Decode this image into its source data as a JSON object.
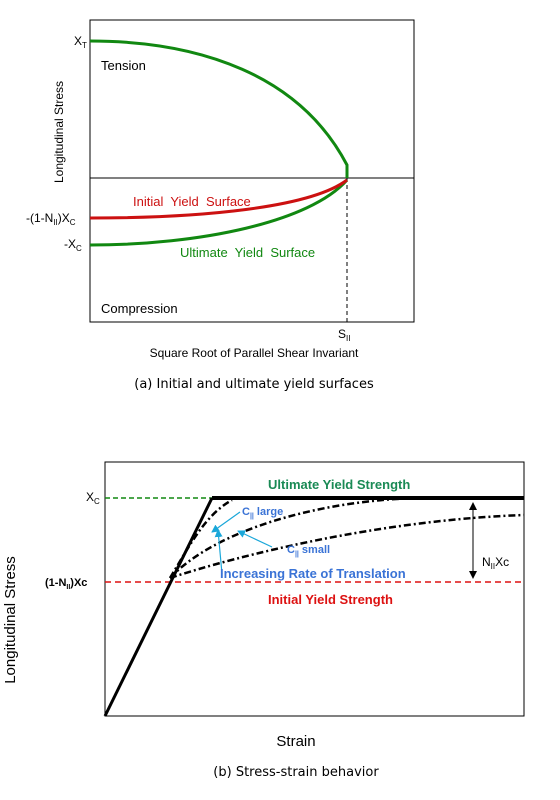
{
  "top_panel": {
    "y_axis_label": "Longitudinal Stress",
    "x_axis_label": "Square Root of Parallel Shear Invariant",
    "tick_xt": {
      "main": "X",
      "sub": "T"
    },
    "tick_init": {
      "pre": "-(1-N",
      "sub": "II",
      "post": ")X",
      "tail": "C"
    },
    "tick_xc": {
      "main": "-X",
      "sub": "C"
    },
    "tick_sii": {
      "main": "S",
      "sub": "II"
    },
    "region_tension": "Tension",
    "region_compression": "Compression",
    "curve_initial": "Initial  Yield  Surface",
    "curve_ultimate": "Ultimate  Yield  Surface",
    "caption": "(a) Initial and ultimate yield surfaces",
    "colors": {
      "initial": "#cc1111",
      "ultimate": "#118811"
    }
  },
  "bottom_panel": {
    "y_axis_label": "Longitudinal Stress",
    "x_axis_label": "Strain",
    "tick_xc": {
      "main": "X",
      "sub": "C"
    },
    "tick_init": {
      "pre": "(1-N",
      "sub": "II",
      "post": ")Xc"
    },
    "ultimate_label": "Ultimate Yield Strength",
    "initial_label": "Initial Yield Strength",
    "c_large": {
      "main": "C",
      "sub": "||",
      "post": " large"
    },
    "c_small": {
      "main": "C",
      "sub": "||",
      "post": " small"
    },
    "rate_label": "Increasing Rate of Translation",
    "dim_label": {
      "pre": "N",
      "sub": "II",
      "post": "Xc"
    },
    "caption": "(b) Stress-strain behavior",
    "colors": {
      "ultimate_text": "#1a8a55",
      "initial": "#dd1111",
      "blue": "#3a73d6",
      "cyan": "#1aa7d9",
      "green_dash": "#118811"
    }
  }
}
